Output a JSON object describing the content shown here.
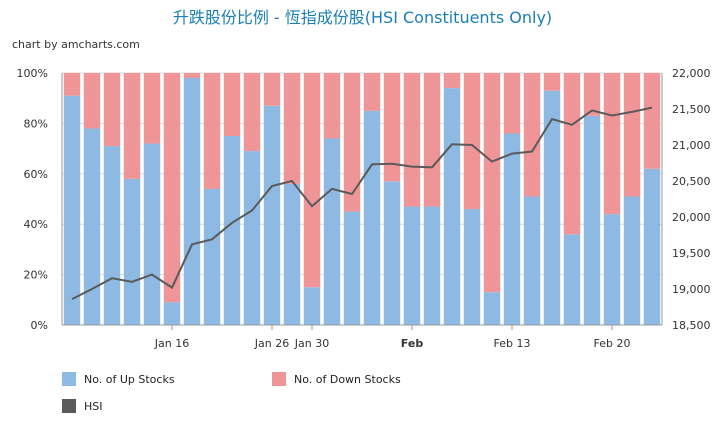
{
  "title": "升跌股份比例 - 恆指成份股(HSI Constituents Only)",
  "credit": "chart by amcharts.com",
  "colors": {
    "up": "#8db9e3",
    "down": "#f09597",
    "line": "#5a5a5a",
    "grid": "#d9d9d9",
    "axis": "#999999"
  },
  "legend": [
    {
      "label": "No. of Up Stocks",
      "color": "#8db9e3"
    },
    {
      "label": "No. of Down Stocks",
      "color": "#f09597"
    },
    {
      "label": "HSI",
      "color": "#5a5a5a"
    }
  ],
  "chart_data": {
    "type": "bar",
    "stacked_percent": true,
    "categories": [
      "",
      "",
      "",
      "",
      "",
      "Jan 16",
      "",
      "",
      "",
      "",
      "Jan 26",
      "",
      "Jan 30",
      "",
      "",
      "",
      "",
      "Feb",
      "",
      "",
      "",
      "",
      "Feb 13",
      "",
      "",
      "",
      "",
      "Feb 20",
      "",
      ""
    ],
    "series": [
      {
        "name": "No. of Up Stocks",
        "axis": "left",
        "values": [
          91,
          78,
          71,
          58,
          72,
          9,
          98,
          54,
          75,
          69,
          87,
          56,
          15,
          74,
          45,
          85,
          57,
          47,
          47,
          94,
          46,
          13,
          76,
          51,
          93,
          36,
          83,
          44,
          51,
          62
        ]
      },
      {
        "name": "No. of Down Stocks",
        "axis": "left",
        "values": [
          9,
          22,
          29,
          42,
          28,
          91,
          2,
          46,
          25,
          31,
          13,
          44,
          85,
          26,
          55,
          15,
          43,
          53,
          53,
          6,
          54,
          87,
          24,
          49,
          7,
          64,
          17,
          56,
          49,
          38
        ]
      },
      {
        "name": "HSI",
        "type": "line",
        "axis": "right",
        "values": [
          18860,
          19000,
          19150,
          19100,
          19200,
          19020,
          19620,
          19690,
          19920,
          20090,
          20430,
          20500,
          20150,
          20390,
          20320,
          20730,
          20740,
          20700,
          20690,
          21010,
          21000,
          20770,
          20880,
          20910,
          21360,
          21280,
          21480,
          21410,
          21460,
          21520
        ]
      }
    ],
    "left_axis": {
      "ticks": [
        "0%",
        "20%",
        "40%",
        "60%",
        "80%",
        "100%"
      ],
      "range": [
        0,
        100
      ]
    },
    "right_axis": {
      "ticks": [
        "18,500",
        "19,000",
        "19,500",
        "20,000",
        "20,500",
        "21,000",
        "21,500",
        "22,000"
      ],
      "range": [
        18500,
        22000
      ]
    },
    "xlabels": [
      {
        "index": 5,
        "label": "Jan 16",
        "bold": false
      },
      {
        "index": 10,
        "label": "Jan 26",
        "bold": false
      },
      {
        "index": 12,
        "label": "Jan 30",
        "bold": false
      },
      {
        "index": 17,
        "label": "Feb",
        "bold": true
      },
      {
        "index": 22,
        "label": "Feb 13",
        "bold": false
      },
      {
        "index": 27,
        "label": "Feb 20",
        "bold": false
      }
    ],
    "grid": true,
    "legend_position": "bottom"
  }
}
